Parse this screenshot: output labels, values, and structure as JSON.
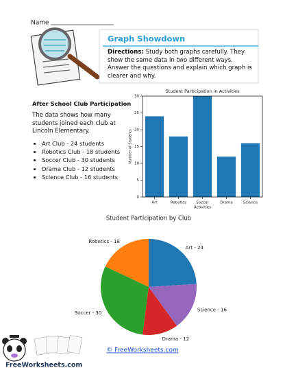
{
  "name_label": "Name",
  "header": {
    "title": "Graph Showdown",
    "directions_label": "Directions:",
    "directions": "Study both graphs carefully. They show the same data in two different ways. Answer the questions and explain which graph is clearer and why."
  },
  "section": {
    "title": "After School Club Participation",
    "text": "The data shows how many students joined each club at Lincoln Elementary.",
    "items": [
      "Art Club - 24 students",
      "Robotics Club - 18 students",
      "Soccer Club - 30 students",
      "Drama Club - 12 students",
      "Science Club - 16 students"
    ]
  },
  "chart_data": [
    {
      "type": "bar",
      "title": "Student Participation in Activities",
      "x_label": "Activities",
      "y_label": "Number of Students",
      "categories": [
        "Art",
        "Robotics",
        "Soccer",
        "Drama",
        "Science"
      ],
      "values": [
        24,
        18,
        30,
        12,
        16
      ],
      "color": "#1f77b4",
      "ylim": [
        0,
        30
      ],
      "yticks": [
        0,
        5,
        10,
        15,
        20,
        25,
        30
      ]
    },
    {
      "type": "pie",
      "title": "Student Participation by Club",
      "values": [
        24,
        18,
        30,
        12,
        16
      ],
      "value_labels": [
        "Art - 24",
        "Robotics - 18",
        "Soccer - 30",
        "Drama - 12",
        "Science - 16"
      ],
      "colors": [
        "#1f77b4",
        "#ff7f0e",
        "#2ca02c",
        "#d62728",
        "#9467bd"
      ]
    }
  ],
  "footer": {
    "logo": "FreeWorksheets.com",
    "link": "© FreeWorksheets.com"
  }
}
